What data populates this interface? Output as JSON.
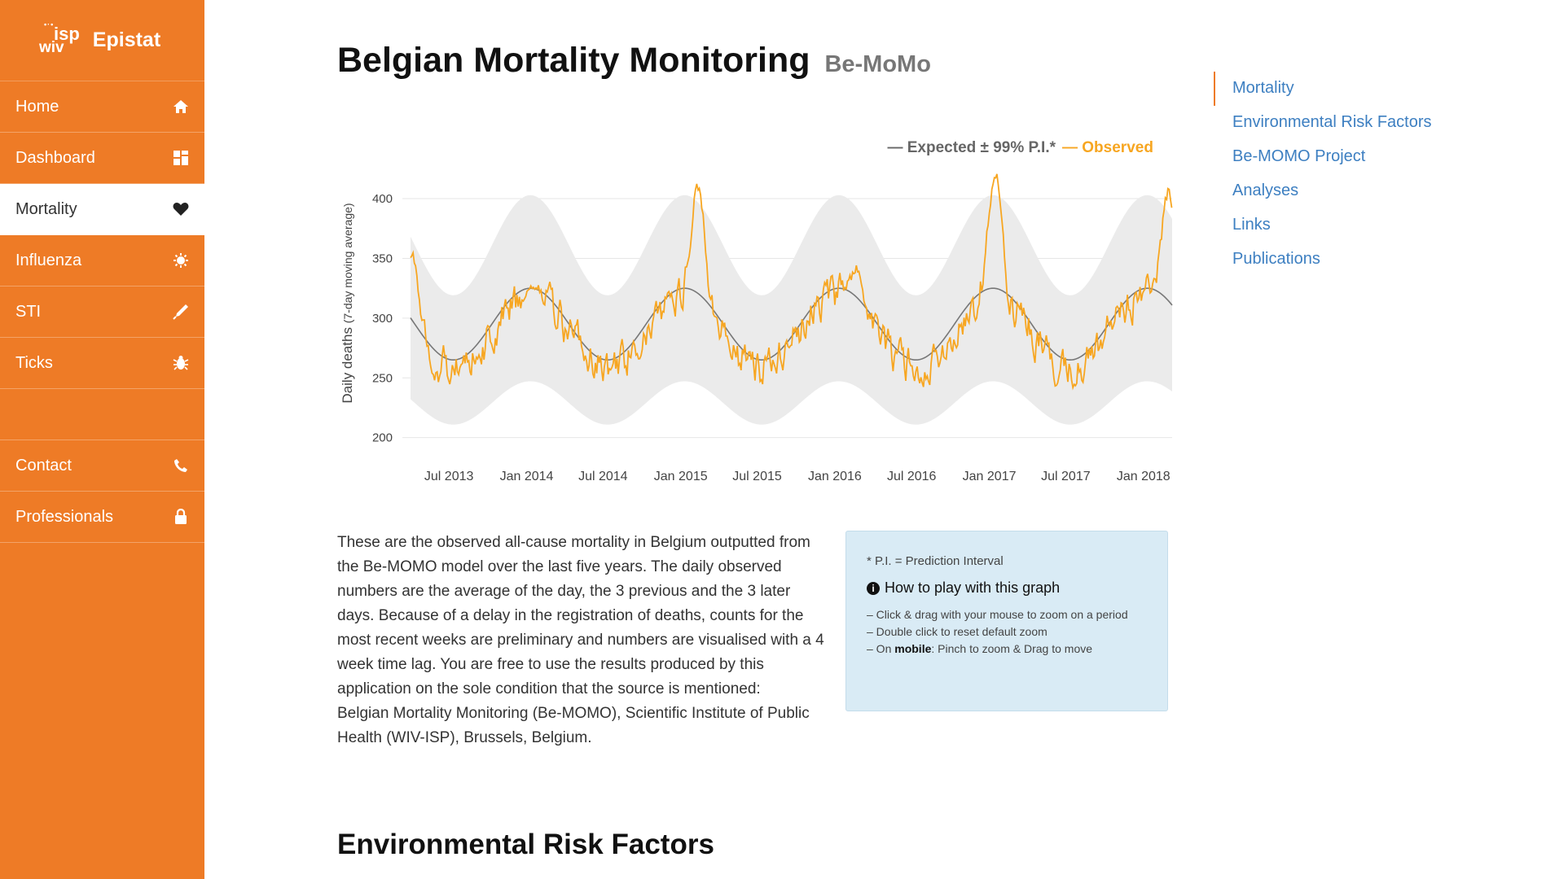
{
  "brand": {
    "logo_top": "isp",
    "logo_bottom": "wiv",
    "name": "Epistat"
  },
  "sidebar": {
    "items": [
      {
        "label": "Home",
        "icon": "home-icon"
      },
      {
        "label": "Dashboard",
        "icon": "dashboard-icon"
      },
      {
        "label": "Mortality",
        "icon": "heart-icon",
        "active": true
      },
      {
        "label": "Influenza",
        "icon": "virus-icon"
      },
      {
        "label": "STI",
        "icon": "syringe-icon"
      },
      {
        "label": "Ticks",
        "icon": "bug-icon"
      },
      {
        "label": "Contact",
        "icon": "phone-icon"
      },
      {
        "label": "Professionals",
        "icon": "lock-icon"
      }
    ]
  },
  "page": {
    "title": "Belgian Mortality Monitoring",
    "subtitle": "Be-MoMo"
  },
  "chart_data": {
    "type": "line",
    "legend": {
      "expected": "— Expected ± 99% P.I.*",
      "observed": "— Observed"
    },
    "ylabel_main": "Daily deaths",
    "ylabel_sub": "(7-day moving average)",
    "yticks": [
      200,
      250,
      300,
      350,
      400
    ],
    "ylim": [
      195,
      430
    ],
    "xticks": [
      "Jul 2013",
      "Jan 2014",
      "Jul 2014",
      "Jan 2015",
      "Jul 2015",
      "Jan 2016",
      "Jul 2016",
      "Jan 2017",
      "Jul 2017",
      "Jan 2018"
    ],
    "x_range": [
      "2013-04-01",
      "2018-03-10"
    ],
    "expected": {
      "center_amplitude": 30,
      "mid": 295,
      "pi_halfwidth": 66
    },
    "observed_peaks": [
      {
        "date": "2013-04-05",
        "value": 357
      },
      {
        "date": "2014-01-15",
        "value": 330
      },
      {
        "date": "2015-02-10",
        "value": 414
      },
      {
        "date": "2016-02-20",
        "value": 345
      },
      {
        "date": "2017-01-15",
        "value": 425
      },
      {
        "date": "2018-03-01",
        "value": 410
      }
    ],
    "colors": {
      "expected": "#777777",
      "band": "#ebebeb",
      "observed": "#f7a621"
    }
  },
  "description": [
    "These are the observed all-cause mortality in Belgium outputted from the Be-MOMO model over the last five years. The daily observed numbers are the average of the day, the 3 previous and the 3 later days. Because of a delay in the registration of deaths, counts for the most recent weeks are preliminary and numbers are visualised with a 4 week time lag. You are free to use the results produced by this application on the sole condition that the source is mentioned:",
    "Belgian Mortality Monitoring (Be-MOMO), Scientific Institute of Public Health (WIV-ISP), Brussels, Belgium."
  ],
  "help": {
    "note": "* P.I. = Prediction Interval",
    "heading": "How to play with this graph",
    "tips": [
      "– Click & drag with your mouse to zoom on a period",
      "– Double click to reset default zoom"
    ],
    "mobile_prefix": "– On ",
    "mobile_bold": "mobile",
    "mobile_suffix": ": Pinch to zoom & Drag to move"
  },
  "section": {
    "title": "Environmental Risk Factors"
  },
  "toc": {
    "items": [
      "Mortality",
      "Environmental Risk Factors",
      "Be-MOMO Project",
      "Analyses",
      "Links",
      "Publications"
    ]
  }
}
